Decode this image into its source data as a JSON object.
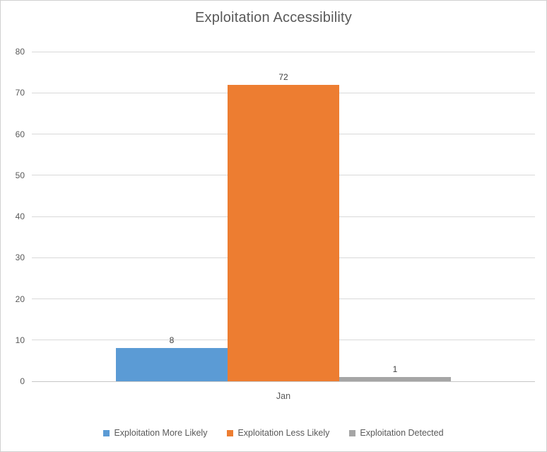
{
  "title": "Exploitation Accessibility",
  "chart_data": {
    "type": "bar",
    "title": "Exploitation Accessibility",
    "categories": [
      "Jan"
    ],
    "series": [
      {
        "name": "Exploitation More Likely",
        "values": [
          8
        ],
        "color": "#5B9BD5"
      },
      {
        "name": "Exploitation Less Likely",
        "values": [
          72
        ],
        "color": "#ED7D31"
      },
      {
        "name": "Exploitation Detected",
        "values": [
          1
        ],
        "color": "#A5A5A5"
      }
    ],
    "xlabel": "",
    "ylabel": "",
    "ylim": [
      0,
      80
    ],
    "yticks": [
      0,
      10,
      20,
      30,
      40,
      50,
      60,
      70,
      80
    ],
    "grid": true,
    "legend_position": "bottom",
    "data_labels_shown": true
  },
  "colors": {
    "background": "#FFFFFF",
    "border": "#D0D0D0",
    "gridline": "#D9D9D9",
    "axis_line": "#C6C6C6",
    "title_text": "#595959",
    "tick_text": "#595959",
    "data_label_text": "#404040"
  }
}
